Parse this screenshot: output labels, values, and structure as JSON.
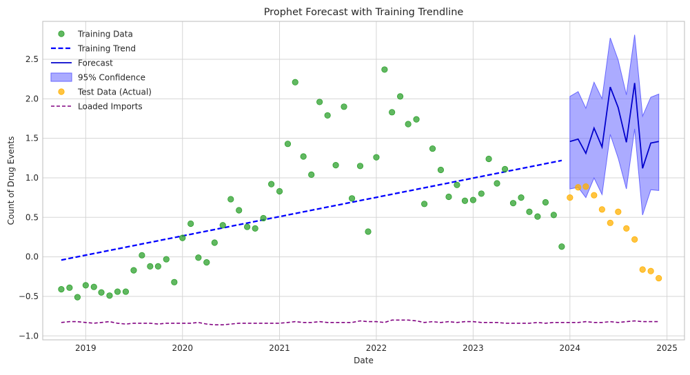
{
  "chart_data": {
    "type": "line",
    "title": "Prophet Forecast with Training Trendline",
    "xlabel": "Date",
    "ylabel": "Count of Drug Events",
    "xlim": [
      "2018-07-23",
      "2025-03-08"
    ],
    "ylim": [
      -1.05,
      2.98
    ],
    "x_ticks": [
      "2019",
      "2020",
      "2021",
      "2022",
      "2023",
      "2024",
      "2025"
    ],
    "y_ticks": [
      "−1.0",
      "−0.5",
      "0.0",
      "0.5",
      "1.0",
      "1.5",
      "2.0",
      "2.5"
    ],
    "y_tick_values": [
      -1.0,
      -0.5,
      0.0,
      0.5,
      1.0,
      1.5,
      2.0,
      2.5
    ],
    "x_tick_dates": [
      "2019-01-01",
      "2020-01-01",
      "2021-01-01",
      "2022-01-01",
      "2023-01-01",
      "2024-01-01",
      "2025-01-01"
    ],
    "grid": true,
    "legend_position": "top-left",
    "colors": {
      "training": "#2ca02c",
      "trend": "#0000ff",
      "forecast": "#0000cc",
      "confidence": "#6666ff",
      "test": "#ffb000",
      "imports": "#800080",
      "grid": "#d5d5d5",
      "axes": "#bbbbbb"
    },
    "legend": [
      {
        "key": "training",
        "label": "Training Data"
      },
      {
        "key": "trend",
        "label": "Training Trend"
      },
      {
        "key": "forecast",
        "label": "Forecast"
      },
      {
        "key": "confidence",
        "label": "95% Confidence"
      },
      {
        "key": "test",
        "label": "Test Data (Actual)"
      },
      {
        "key": "imports",
        "label": "Loaded Imports"
      }
    ],
    "series": [
      {
        "name": "Training Data",
        "kind": "scatter",
        "points": [
          [
            "2018-10-01",
            -0.41
          ],
          [
            "2018-11-01",
            -0.39
          ],
          [
            "2018-12-01",
            -0.51
          ],
          [
            "2019-01-01",
            -0.36
          ],
          [
            "2019-02-01",
            -0.38
          ],
          [
            "2019-03-01",
            -0.45
          ],
          [
            "2019-04-01",
            -0.49
          ],
          [
            "2019-05-01",
            -0.44
          ],
          [
            "2019-06-01",
            -0.44
          ],
          [
            "2019-07-01",
            -0.17
          ],
          [
            "2019-08-01",
            0.02
          ],
          [
            "2019-09-01",
            -0.12
          ],
          [
            "2019-10-01",
            -0.12
          ],
          [
            "2019-11-01",
            -0.03
          ],
          [
            "2019-12-01",
            -0.32
          ],
          [
            "2020-01-01",
            0.24
          ],
          [
            "2020-02-01",
            0.42
          ],
          [
            "2020-03-01",
            -0.01
          ],
          [
            "2020-04-01",
            -0.07
          ],
          [
            "2020-05-01",
            0.18
          ],
          [
            "2020-06-01",
            0.4
          ],
          [
            "2020-07-01",
            0.73
          ],
          [
            "2020-08-01",
            0.59
          ],
          [
            "2020-09-01",
            0.38
          ],
          [
            "2020-10-01",
            0.36
          ],
          [
            "2020-11-01",
            0.49
          ],
          [
            "2020-12-01",
            0.92
          ],
          [
            "2021-01-01",
            0.83
          ],
          [
            "2021-02-01",
            1.43
          ],
          [
            "2021-03-01",
            2.21
          ],
          [
            "2021-04-01",
            1.27
          ],
          [
            "2021-05-01",
            1.04
          ],
          [
            "2021-06-01",
            1.96
          ],
          [
            "2021-07-01",
            1.79
          ],
          [
            "2021-08-01",
            1.16
          ],
          [
            "2021-09-01",
            1.9
          ],
          [
            "2021-10-01",
            0.74
          ],
          [
            "2021-11-01",
            1.15
          ],
          [
            "2021-12-01",
            0.32
          ],
          [
            "2022-01-01",
            1.26
          ],
          [
            "2022-02-01",
            2.37
          ],
          [
            "2022-03-01",
            1.83
          ],
          [
            "2022-04-01",
            2.03
          ],
          [
            "2022-05-01",
            1.68
          ],
          [
            "2022-06-01",
            1.74
          ],
          [
            "2022-07-01",
            0.67
          ],
          [
            "2022-08-01",
            1.37
          ],
          [
            "2022-09-01",
            1.1
          ],
          [
            "2022-10-01",
            0.76
          ],
          [
            "2022-11-01",
            0.91
          ],
          [
            "2022-12-01",
            0.71
          ],
          [
            "2023-01-01",
            0.72
          ],
          [
            "2023-02-01",
            0.8
          ],
          [
            "2023-03-01",
            1.24
          ],
          [
            "2023-04-01",
            0.93
          ],
          [
            "2023-05-01",
            1.11
          ],
          [
            "2023-06-01",
            0.68
          ],
          [
            "2023-07-01",
            0.75
          ],
          [
            "2023-08-01",
            0.57
          ],
          [
            "2023-09-01",
            0.51
          ],
          [
            "2023-10-01",
            0.69
          ],
          [
            "2023-11-01",
            0.53
          ],
          [
            "2023-12-01",
            0.13
          ]
        ]
      },
      {
        "name": "Training Trend",
        "kind": "dashed-line",
        "points": [
          [
            "2018-10-01",
            -0.04
          ],
          [
            "2023-12-01",
            1.22
          ]
        ]
      },
      {
        "name": "Forecast",
        "kind": "line",
        "points": [
          [
            "2024-01-01",
            1.46
          ],
          [
            "2024-02-01",
            1.49
          ],
          [
            "2024-03-01",
            1.31
          ],
          [
            "2024-04-01",
            1.63
          ],
          [
            "2024-05-01",
            1.39
          ],
          [
            "2024-06-01",
            2.15
          ],
          [
            "2024-07-01",
            1.89
          ],
          [
            "2024-08-01",
            1.45
          ],
          [
            "2024-09-01",
            2.2
          ],
          [
            "2024-10-01",
            1.12
          ],
          [
            "2024-11-01",
            1.44
          ],
          [
            "2024-12-01",
            1.46
          ]
        ]
      },
      {
        "name": "95% Confidence",
        "kind": "band",
        "points": [
          [
            "2024-01-01",
            0.86,
            2.03
          ],
          [
            "2024-02-01",
            0.88,
            2.09
          ],
          [
            "2024-03-01",
            0.75,
            1.88
          ],
          [
            "2024-04-01",
            1.0,
            2.21
          ],
          [
            "2024-05-01",
            0.79,
            2.0
          ],
          [
            "2024-06-01",
            1.55,
            2.77
          ],
          [
            "2024-07-01",
            1.25,
            2.49
          ],
          [
            "2024-08-01",
            0.86,
            2.05
          ],
          [
            "2024-09-01",
            1.62,
            2.81
          ],
          [
            "2024-10-01",
            0.53,
            1.78
          ],
          [
            "2024-11-01",
            0.85,
            2.02
          ],
          [
            "2024-12-01",
            0.84,
            2.06
          ]
        ]
      },
      {
        "name": "Test Data (Actual)",
        "kind": "scatter",
        "points": [
          [
            "2024-01-01",
            0.75
          ],
          [
            "2024-02-01",
            0.88
          ],
          [
            "2024-03-01",
            0.89
          ],
          [
            "2024-04-01",
            0.78
          ],
          [
            "2024-05-01",
            0.6
          ],
          [
            "2024-06-01",
            0.43
          ],
          [
            "2024-07-01",
            0.57
          ],
          [
            "2024-08-01",
            0.36
          ],
          [
            "2024-09-01",
            0.22
          ],
          [
            "2024-10-01",
            -0.16
          ],
          [
            "2024-11-01",
            -0.18
          ],
          [
            "2024-12-01",
            -0.27
          ]
        ]
      },
      {
        "name": "Loaded Imports",
        "kind": "dashed-line",
        "points": [
          [
            "2018-10-01",
            -0.83
          ],
          [
            "2018-11-01",
            -0.82
          ],
          [
            "2018-12-01",
            -0.82
          ],
          [
            "2019-01-01",
            -0.83
          ],
          [
            "2019-02-01",
            -0.84
          ],
          [
            "2019-03-01",
            -0.83
          ],
          [
            "2019-04-01",
            -0.82
          ],
          [
            "2019-05-01",
            -0.84
          ],
          [
            "2019-06-01",
            -0.85
          ],
          [
            "2019-07-01",
            -0.84
          ],
          [
            "2019-08-01",
            -0.84
          ],
          [
            "2019-09-01",
            -0.84
          ],
          [
            "2019-10-01",
            -0.85
          ],
          [
            "2019-11-01",
            -0.84
          ],
          [
            "2019-12-01",
            -0.84
          ],
          [
            "2020-01-01",
            -0.84
          ],
          [
            "2020-02-01",
            -0.84
          ],
          [
            "2020-03-01",
            -0.83
          ],
          [
            "2020-04-01",
            -0.85
          ],
          [
            "2020-05-01",
            -0.86
          ],
          [
            "2020-06-01",
            -0.86
          ],
          [
            "2020-07-01",
            -0.85
          ],
          [
            "2020-08-01",
            -0.84
          ],
          [
            "2020-09-01",
            -0.84
          ],
          [
            "2020-10-01",
            -0.84
          ],
          [
            "2020-11-01",
            -0.84
          ],
          [
            "2020-12-01",
            -0.84
          ],
          [
            "2021-01-01",
            -0.84
          ],
          [
            "2021-02-01",
            -0.83
          ],
          [
            "2021-03-01",
            -0.82
          ],
          [
            "2021-04-01",
            -0.83
          ],
          [
            "2021-05-01",
            -0.83
          ],
          [
            "2021-06-01",
            -0.82
          ],
          [
            "2021-07-01",
            -0.83
          ],
          [
            "2021-08-01",
            -0.83
          ],
          [
            "2021-09-01",
            -0.83
          ],
          [
            "2021-10-01",
            -0.83
          ],
          [
            "2021-11-01",
            -0.81
          ],
          [
            "2021-12-01",
            -0.82
          ],
          [
            "2022-01-01",
            -0.82
          ],
          [
            "2022-02-01",
            -0.83
          ],
          [
            "2022-03-01",
            -0.8
          ],
          [
            "2022-04-01",
            -0.8
          ],
          [
            "2022-05-01",
            -0.8
          ],
          [
            "2022-06-01",
            -0.81
          ],
          [
            "2022-07-01",
            -0.83
          ],
          [
            "2022-08-01",
            -0.82
          ],
          [
            "2022-09-01",
            -0.83
          ],
          [
            "2022-10-01",
            -0.82
          ],
          [
            "2022-11-01",
            -0.83
          ],
          [
            "2022-12-01",
            -0.82
          ],
          [
            "2023-01-01",
            -0.82
          ],
          [
            "2023-02-01",
            -0.83
          ],
          [
            "2023-03-01",
            -0.83
          ],
          [
            "2023-04-01",
            -0.83
          ],
          [
            "2023-05-01",
            -0.84
          ],
          [
            "2023-06-01",
            -0.84
          ],
          [
            "2023-07-01",
            -0.84
          ],
          [
            "2023-08-01",
            -0.84
          ],
          [
            "2023-09-01",
            -0.83
          ],
          [
            "2023-10-01",
            -0.84
          ],
          [
            "2023-11-01",
            -0.83
          ],
          [
            "2023-12-01",
            -0.83
          ],
          [
            "2024-01-01",
            -0.83
          ],
          [
            "2024-02-01",
            -0.83
          ],
          [
            "2024-03-01",
            -0.82
          ],
          [
            "2024-04-01",
            -0.83
          ],
          [
            "2024-05-01",
            -0.83
          ],
          [
            "2024-06-01",
            -0.82
          ],
          [
            "2024-07-01",
            -0.83
          ],
          [
            "2024-08-01",
            -0.82
          ],
          [
            "2024-09-01",
            -0.81
          ],
          [
            "2024-10-01",
            -0.82
          ],
          [
            "2024-11-01",
            -0.82
          ],
          [
            "2024-12-01",
            -0.82
          ]
        ]
      }
    ]
  }
}
